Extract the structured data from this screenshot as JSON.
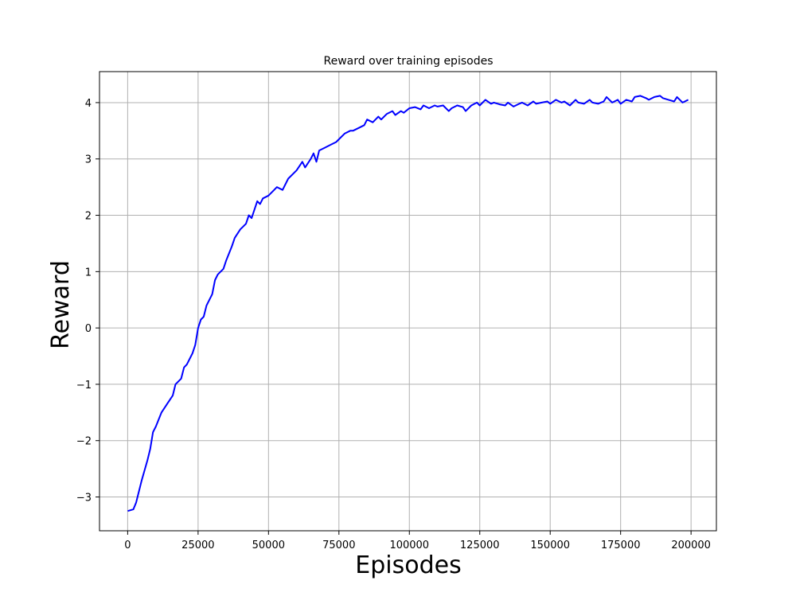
{
  "chart_data": {
    "type": "line",
    "title": "Reward over training episodes",
    "xlabel": "Episodes",
    "ylabel": "Reward",
    "xlim": [
      -10000,
      209000
    ],
    "ylim": [
      -3.6,
      4.55
    ],
    "x_ticks": [
      0,
      25000,
      50000,
      75000,
      100000,
      125000,
      150000,
      175000,
      200000
    ],
    "x_tick_labels": [
      "0",
      "25000",
      "50000",
      "75000",
      "100000",
      "125000",
      "150000",
      "175000",
      "200000"
    ],
    "y_ticks": [
      -3,
      -2,
      -1,
      0,
      1,
      2,
      3,
      4
    ],
    "y_tick_labels": [
      "−3",
      "−2",
      "−1",
      "0",
      "1",
      "2",
      "3",
      "4"
    ],
    "grid": true,
    "line_color": "#0000ff",
    "grid_color": "#b0b0b0",
    "series": [
      {
        "x": [
          0,
          2000,
          3000,
          5000,
          7000,
          8000,
          9000,
          10000,
          12000,
          14000,
          16000,
          17000,
          19000,
          20000,
          21000,
          23000,
          24000,
          25000,
          26000,
          27000,
          28000,
          30000,
          31000,
          32000,
          34000,
          35000,
          37000,
          38000,
          40000,
          41000,
          42000,
          43000,
          44000,
          46000,
          47000,
          48000,
          50000,
          52000,
          53000,
          55000,
          57000,
          59000,
          60000,
          62000,
          63000,
          65000,
          66000,
          67000,
          68000,
          70000,
          72000,
          74000,
          75000,
          77000,
          79000,
          80000,
          82000,
          84000,
          85000,
          87000,
          89000,
          90000,
          92000,
          94000,
          95000,
          97000,
          98000,
          100000,
          102000,
          104000,
          105000,
          107000,
          109000,
          110000,
          112000,
          114000,
          115000,
          117000,
          119000,
          120000,
          122000,
          124000,
          125000,
          127000,
          129000,
          130000,
          132000,
          134000,
          135000,
          137000,
          139000,
          140000,
          142000,
          144000,
          145000,
          147000,
          149000,
          150000,
          152000,
          154000,
          155000,
          157000,
          159000,
          160000,
          162000,
          164000,
          165000,
          167000,
          169000,
          170000,
          172000,
          174000,
          175000,
          177000,
          179000,
          180000,
          182000,
          184000,
          185000,
          187000,
          189000,
          190000,
          192000,
          194000,
          195000,
          197000,
          199000
        ],
        "y": [
          -3.25,
          -3.22,
          -3.1,
          -2.7,
          -2.35,
          -2.15,
          -1.85,
          -1.75,
          -1.5,
          -1.35,
          -1.2,
          -1.0,
          -0.9,
          -0.7,
          -0.65,
          -0.45,
          -0.3,
          0.0,
          0.15,
          0.2,
          0.4,
          0.6,
          0.85,
          0.95,
          1.05,
          1.2,
          1.45,
          1.6,
          1.75,
          1.8,
          1.85,
          2.0,
          1.95,
          2.25,
          2.2,
          2.3,
          2.35,
          2.45,
          2.5,
          2.45,
          2.65,
          2.75,
          2.8,
          2.95,
          2.85,
          3.0,
          3.1,
          2.95,
          3.15,
          3.2,
          3.25,
          3.3,
          3.35,
          3.45,
          3.5,
          3.5,
          3.55,
          3.6,
          3.7,
          3.65,
          3.75,
          3.7,
          3.8,
          3.85,
          3.78,
          3.85,
          3.82,
          3.9,
          3.92,
          3.88,
          3.95,
          3.9,
          3.95,
          3.93,
          3.95,
          3.85,
          3.9,
          3.95,
          3.92,
          3.85,
          3.95,
          4.0,
          3.95,
          4.05,
          3.98,
          4.0,
          3.97,
          3.95,
          4.0,
          3.93,
          3.98,
          4.0,
          3.95,
          4.02,
          3.98,
          4.0,
          4.02,
          3.98,
          4.05,
          4.0,
          4.02,
          3.95,
          4.05,
          4.0,
          3.98,
          4.05,
          4.0,
          3.98,
          4.02,
          4.1,
          4.0,
          4.05,
          3.98,
          4.05,
          4.02,
          4.1,
          4.12,
          4.08,
          4.05,
          4.1,
          4.12,
          4.08,
          4.05,
          4.02,
          4.1,
          4.0,
          4.05
        ]
      }
    ]
  }
}
